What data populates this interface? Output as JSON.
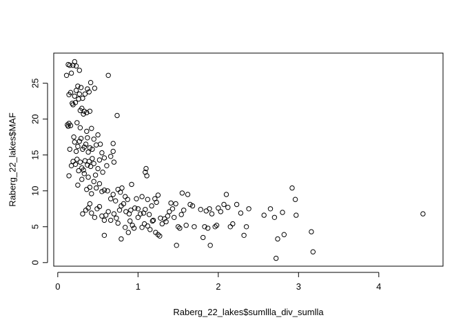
{
  "chart_data": {
    "type": "scatter",
    "title": "",
    "xlabel": "Raberg_22_lakes$sumllla_div_sumlla",
    "ylabel": "Raberg_22_lakes$MAF",
    "xlim": [
      -0.05,
      4.8
    ],
    "ylim": [
      -0.5,
      29.2
    ],
    "xticks": [
      0,
      1,
      2,
      3,
      4
    ],
    "yticks": [
      0,
      5,
      10,
      15,
      20,
      25
    ],
    "xtick_labels": [
      "0",
      "1",
      "2",
      "3",
      "4"
    ],
    "ytick_labels": [
      "0",
      "5",
      "10",
      "15",
      "20",
      "25"
    ],
    "grid": false,
    "marker": "open-circle",
    "points": [
      [
        0.11,
        26.1
      ],
      [
        0.13,
        27.6
      ],
      [
        0.15,
        27.5
      ],
      [
        0.17,
        26.4
      ],
      [
        0.19,
        27.5
      ],
      [
        0.21,
        28.0
      ],
      [
        0.23,
        27.4
      ],
      [
        0.27,
        26.8
      ],
      [
        0.14,
        23.4
      ],
      [
        0.16,
        23.7
      ],
      [
        0.19,
        22.0
      ],
      [
        0.21,
        23.2
      ],
      [
        0.23,
        24.0
      ],
      [
        0.25,
        24.6
      ],
      [
        0.27,
        23.5
      ],
      [
        0.29,
        24.4
      ],
      [
        0.31,
        22.9
      ],
      [
        0.34,
        23.5
      ],
      [
        0.37,
        24.2
      ],
      [
        0.39,
        23.8
      ],
      [
        0.41,
        25.1
      ],
      [
        0.46,
        24.3
      ],
      [
        0.63,
        26.1
      ],
      [
        0.12,
        19.2
      ],
      [
        0.13,
        19.0
      ],
      [
        0.14,
        19.4
      ],
      [
        0.16,
        19.1
      ],
      [
        0.18,
        22.2
      ],
      [
        0.22,
        22.3
      ],
      [
        0.26,
        22.8
      ],
      [
        0.28,
        21.2
      ],
      [
        0.3,
        21.5
      ],
      [
        0.32,
        20.7
      ],
      [
        0.33,
        21.1
      ],
      [
        0.36,
        20.9
      ],
      [
        0.4,
        21.1
      ],
      [
        0.24,
        19.5
      ],
      [
        0.28,
        18.8
      ],
      [
        0.36,
        18.3
      ],
      [
        0.42,
        18.7
      ],
      [
        0.74,
        20.5
      ],
      [
        0.15,
        15.8
      ],
      [
        0.17,
        13.5
      ],
      [
        0.2,
        17.5
      ],
      [
        0.21,
        16.8
      ],
      [
        0.23,
        15.5
      ],
      [
        0.25,
        16.2
      ],
      [
        0.27,
        16.9
      ],
      [
        0.29,
        17.3
      ],
      [
        0.31,
        15.8
      ],
      [
        0.33,
        16.1
      ],
      [
        0.35,
        16.5
      ],
      [
        0.37,
        17.4
      ],
      [
        0.38,
        15.4
      ],
      [
        0.4,
        16.0
      ],
      [
        0.43,
        15.8
      ],
      [
        0.45,
        17.2
      ],
      [
        0.48,
        16.4
      ],
      [
        0.5,
        17.8
      ],
      [
        0.53,
        16.5
      ],
      [
        0.55,
        15.3
      ],
      [
        0.69,
        16.6
      ],
      [
        0.69,
        15.5
      ],
      [
        0.14,
        12.1
      ],
      [
        0.19,
        14.1
      ],
      [
        0.22,
        13.7
      ],
      [
        0.24,
        14.4
      ],
      [
        0.26,
        12.8
      ],
      [
        0.28,
        14.0
      ],
      [
        0.3,
        13.2
      ],
      [
        0.32,
        12.9
      ],
      [
        0.34,
        14.2
      ],
      [
        0.37,
        13.6
      ],
      [
        0.39,
        14.1
      ],
      [
        0.41,
        13.4
      ],
      [
        0.43,
        14.5
      ],
      [
        0.45,
        13.8
      ],
      [
        0.47,
        12.2
      ],
      [
        0.5,
        13.1
      ],
      [
        0.52,
        14.3
      ],
      [
        0.56,
        12.6
      ],
      [
        0.58,
        14.6
      ],
      [
        0.61,
        13.5
      ],
      [
        0.66,
        14.8
      ],
      [
        0.7,
        14.0
      ],
      [
        0.25,
        10.8
      ],
      [
        0.3,
        11.6
      ],
      [
        0.33,
        12.4
      ],
      [
        0.36,
        10.2
      ],
      [
        0.38,
        11.9
      ],
      [
        0.4,
        10.5
      ],
      [
        0.42,
        9.6
      ],
      [
        0.45,
        11.3
      ],
      [
        0.48,
        10.4
      ],
      [
        0.52,
        11.0
      ],
      [
        0.55,
        9.9
      ],
      [
        0.58,
        10.1
      ],
      [
        0.62,
        10.0
      ],
      [
        0.66,
        8.9
      ],
      [
        0.69,
        9.5
      ],
      [
        0.72,
        8.6
      ],
      [
        0.75,
        10.2
      ],
      [
        0.78,
        9.8
      ],
      [
        0.8,
        10.4
      ],
      [
        0.84,
        9.2
      ],
      [
        0.92,
        10.9
      ],
      [
        1.09,
        12.6
      ],
      [
        1.1,
        13.1
      ],
      [
        1.11,
        12.1
      ],
      [
        0.31,
        6.8
      ],
      [
        0.35,
        7.3
      ],
      [
        0.38,
        7.6
      ],
      [
        0.4,
        8.2
      ],
      [
        0.42,
        6.9
      ],
      [
        0.46,
        6.3
      ],
      [
        0.49,
        7.5
      ],
      [
        0.52,
        7.8
      ],
      [
        0.55,
        6.5
      ],
      [
        0.58,
        5.9
      ],
      [
        0.6,
        6.6
      ],
      [
        0.63,
        7.1
      ],
      [
        0.66,
        5.9
      ],
      [
        0.7,
        6.8
      ],
      [
        0.73,
        6.2
      ],
      [
        0.75,
        5.5
      ],
      [
        0.77,
        7.3
      ],
      [
        0.79,
        7.9
      ],
      [
        0.82,
        8.2
      ],
      [
        0.85,
        7.1
      ],
      [
        0.87,
        8.8
      ],
      [
        0.89,
        6.8
      ],
      [
        0.91,
        7.3
      ],
      [
        0.93,
        5.2
      ],
      [
        0.96,
        7.6
      ],
      [
        0.98,
        8.9
      ],
      [
        1.0,
        7.5
      ],
      [
        1.03,
        6.8
      ],
      [
        1.05,
        9.2
      ],
      [
        1.07,
        6.9
      ],
      [
        1.09,
        7.4
      ],
      [
        1.12,
        8.8
      ],
      [
        1.14,
        6.7
      ],
      [
        1.17,
        7.9
      ],
      [
        1.19,
        5.9
      ],
      [
        1.21,
        8.9
      ],
      [
        1.23,
        8.4
      ],
      [
        1.25,
        9.4
      ],
      [
        1.28,
        6.2
      ],
      [
        0.58,
        3.8
      ],
      [
        0.79,
        3.3
      ],
      [
        0.84,
        4.9
      ],
      [
        0.88,
        4.2
      ],
      [
        0.9,
        5.8
      ],
      [
        0.95,
        4.8
      ],
      [
        1.0,
        6.3
      ],
      [
        1.05,
        4.9
      ],
      [
        1.08,
        5.4
      ],
      [
        1.12,
        5.1
      ],
      [
        1.15,
        4.6
      ],
      [
        1.18,
        5.8
      ],
      [
        1.22,
        4.2
      ],
      [
        1.25,
        3.9
      ],
      [
        1.27,
        3.7
      ],
      [
        1.3,
        5.4
      ],
      [
        1.33,
        6.1
      ],
      [
        1.35,
        5.7
      ],
      [
        1.37,
        6.5
      ],
      [
        1.39,
        7.1
      ],
      [
        1.41,
        8.3
      ],
      [
        1.43,
        7.5
      ],
      [
        1.45,
        6.3
      ],
      [
        1.47,
        8.2
      ],
      [
        1.48,
        2.4
      ],
      [
        1.5,
        5.0
      ],
      [
        1.52,
        4.8
      ],
      [
        1.54,
        6.7
      ],
      [
        1.55,
        9.7
      ],
      [
        1.57,
        7.3
      ],
      [
        1.6,
        5.2
      ],
      [
        1.62,
        9.5
      ],
      [
        1.65,
        8.1
      ],
      [
        1.68,
        7.9
      ],
      [
        1.7,
        5.0
      ],
      [
        1.78,
        7.4
      ],
      [
        1.81,
        3.5
      ],
      [
        1.83,
        5.0
      ],
      [
        1.85,
        7.2
      ],
      [
        1.87,
        4.8
      ],
      [
        1.89,
        7.5
      ],
      [
        1.9,
        2.4
      ],
      [
        1.92,
        6.8
      ],
      [
        1.96,
        5.0
      ],
      [
        1.98,
        5.2
      ],
      [
        2.0,
        7.6
      ],
      [
        2.03,
        7.1
      ],
      [
        2.07,
        8.1
      ],
      [
        2.1,
        9.5
      ],
      [
        2.12,
        7.7
      ],
      [
        2.15,
        5.0
      ],
      [
        2.18,
        5.4
      ],
      [
        2.23,
        8.1
      ],
      [
        2.28,
        6.9
      ],
      [
        2.32,
        3.8
      ],
      [
        2.35,
        5.0
      ],
      [
        2.38,
        7.5
      ],
      [
        2.57,
        6.6
      ],
      [
        2.65,
        7.5
      ],
      [
        2.7,
        6.3
      ],
      [
        2.72,
        0.6
      ],
      [
        2.74,
        3.3
      ],
      [
        2.8,
        7.0
      ],
      [
        2.82,
        3.9
      ],
      [
        2.92,
        10.4
      ],
      [
        2.96,
        8.8
      ],
      [
        2.97,
        6.6
      ],
      [
        3.16,
        4.3
      ],
      [
        3.18,
        1.5
      ],
      [
        4.55,
        6.8
      ]
    ]
  }
}
